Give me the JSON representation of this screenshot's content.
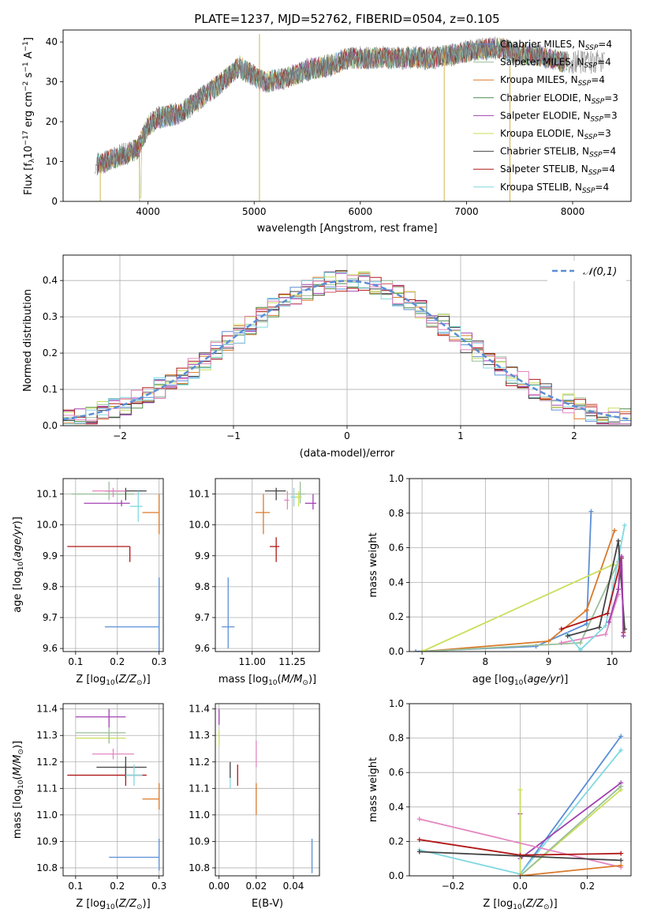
{
  "figure_title": "PLATE=1237, MJD=52762, FIBERID=0504, z=0.105",
  "colors": [
    "#5b8ed6",
    "#9abf9a",
    "#d97a2b",
    "#4d8a4d",
    "#a040b0",
    "#c9de5a",
    "#444444",
    "#b01818",
    "#80d8e0",
    "#e386c0"
  ],
  "chart_data": [
    {
      "id": "spectrum",
      "type": "line",
      "title": "PLATE=1237, MJD=52762, FIBERID=0504, z=0.105",
      "xlabel": "wavelength [Angstrom, rest frame]",
      "ylabel": "Flux [f_λ 10^-17 erg cm^-2 s^-1 A^-1]",
      "xlim": [
        3200,
        8550
      ],
      "ylim": [
        0,
        43
      ],
      "xticks": [
        "4000",
        "5000",
        "6000",
        "7000",
        "8000"
      ],
      "yticks": [
        "0",
        "10",
        "20",
        "30",
        "40"
      ],
      "continuum_x": [
        3500,
        3700,
        3900,
        4000,
        4100,
        4300,
        4500,
        4700,
        4860,
        4900,
        5100,
        5300,
        5500,
        5700,
        5900,
        6100,
        6300,
        6500,
        6700,
        6900,
        7100,
        7300,
        7500,
        7700,
        7900
      ],
      "continuum_y": [
        9,
        11,
        13,
        19,
        21,
        22,
        26,
        30,
        34,
        33,
        30,
        31,
        33,
        34,
        36,
        36,
        36,
        36,
        36,
        37,
        38,
        38.5,
        37,
        36.5,
        35
      ],
      "series": [
        {
          "name": "Chabrier MILES, N_SSP=4",
          "color": "#5b8ed6"
        },
        {
          "name": "Salpeter MILES, N_SSP=4",
          "color": "#9abf9a"
        },
        {
          "name": "Kroupa MILES, N_SSP=4",
          "color": "#d97a2b"
        },
        {
          "name": "Chabrier ELODIE, N_SSP=3",
          "color": "#4d8a4d"
        },
        {
          "name": "Salpeter ELODIE, N_SSP=3",
          "color": "#a040b0"
        },
        {
          "name": "Kroupa ELODIE, N_SSP=3",
          "color": "#c9de5a"
        },
        {
          "name": "Chabrier STELIB, N_SSP=4",
          "color": "#444444"
        },
        {
          "name": "Salpeter STELIB, N_SSP=4",
          "color": "#b01818"
        },
        {
          "name": "Kroupa STELIB, N_SSP=4",
          "color": "#80d8e0"
        }
      ],
      "legend_position": "right"
    },
    {
      "id": "residuals",
      "type": "line",
      "xlabel": "(data-model)/error",
      "ylabel": "Normed distribution",
      "xlim": [
        -2.5,
        2.5
      ],
      "ylim": [
        0,
        0.47
      ],
      "xticks": [
        "−2",
        "−1",
        "0",
        "1",
        "2"
      ],
      "yticks": [
        "0.0",
        "0.1",
        "0.2",
        "0.3",
        "0.4"
      ],
      "bin_width": 0.1,
      "curve": {
        "name": "𝒩(0,1)",
        "mean": 0,
        "sigma": 1,
        "color": "#5b8ed6",
        "style": "dashed"
      },
      "legend_position": "upper right"
    },
    {
      "id": "age_vs_Z",
      "type": "scatter",
      "xlabel": "Z [log10(Z/Z⊙)]",
      "ylabel": "age [log10(age/yr)]",
      "xlim": [
        0.07,
        0.31
      ],
      "ylim": [
        9.59,
        10.15
      ],
      "xticks": [
        "0.1",
        "0.2",
        "0.3"
      ],
      "yticks": [
        "9.6",
        "9.7",
        "9.8",
        "9.9",
        "10.0",
        "10.1"
      ],
      "points": [
        {
          "x": 0.3,
          "y": 9.67,
          "xerr": [
            0.13,
            0.0
          ],
          "yerr": [
            0.08,
            0.16
          ],
          "color": "#5b8ed6"
        },
        {
          "x": 0.23,
          "y": 9.93,
          "xerr": [
            0.15,
            0.0
          ],
          "yerr": [
            0.05,
            0.0
          ],
          "color": "#b01818"
        },
        {
          "x": 0.3,
          "y": 10.04,
          "xerr": [
            0.04,
            0.0
          ],
          "yerr": [
            0.07,
            0.06
          ],
          "color": "#d97a2b"
        },
        {
          "x": 0.21,
          "y": 10.07,
          "xerr": [
            0.09,
            0.02
          ],
          "yerr": [
            0.01,
            0.01
          ],
          "color": "#a040b0"
        },
        {
          "x": 0.18,
          "y": 10.1,
          "xerr": [
            0.09,
            0.06
          ],
          "yerr": [
            0.02,
            0.04
          ],
          "color": "#9abf9a"
        },
        {
          "x": 0.22,
          "y": 10.11,
          "xerr": [
            0.05,
            0.05
          ],
          "yerr": [
            0.03,
            0.01
          ],
          "color": "#444444"
        },
        {
          "x": 0.19,
          "y": 10.11,
          "xerr": [
            0.05,
            0.03
          ],
          "yerr": [
            0.02,
            0.01
          ],
          "color": "#e386c0"
        },
        {
          "x": 0.25,
          "y": 10.06,
          "xerr": [
            0.02,
            0.01
          ],
          "yerr": [
            0.05,
            0.05
          ],
          "color": "#80d8e0"
        }
      ]
    },
    {
      "id": "age_vs_mass",
      "type": "scatter",
      "xlabel": "mass [log10(M/M⊙)]",
      "ylabel": "",
      "xlim": [
        10.77,
        11.42
      ],
      "ylim": [
        9.59,
        10.15
      ],
      "xticks": [
        "11.00",
        "11.25"
      ],
      "yticks": [
        "9.6",
        "9.7",
        "9.8",
        "9.9",
        "10.0",
        "10.1"
      ],
      "points": [
        {
          "x": 10.85,
          "y": 9.67,
          "xerr": [
            0.04,
            0.04
          ],
          "yerr": [
            0.07,
            0.16
          ],
          "color": "#5b8ed6"
        },
        {
          "x": 11.15,
          "y": 9.93,
          "xerr": [
            0.04,
            0.02
          ],
          "yerr": [
            0.05,
            0.03
          ],
          "color": "#b01818"
        },
        {
          "x": 11.07,
          "y": 10.04,
          "xerr": [
            0.05,
            0.04
          ],
          "yerr": [
            0.07,
            0.06
          ],
          "color": "#d97a2b"
        },
        {
          "x": 11.38,
          "y": 10.07,
          "xerr": [
            0.05,
            0.02
          ],
          "yerr": [
            0.02,
            0.03
          ],
          "color": "#a040b0"
        },
        {
          "x": 11.3,
          "y": 10.1,
          "xerr": [
            0.03,
            0.03
          ],
          "yerr": [
            0.03,
            0.04
          ],
          "color": "#9abf9a"
        },
        {
          "x": 11.15,
          "y": 10.11,
          "xerr": [
            0.07,
            0.06
          ],
          "yerr": [
            0.03,
            0.01
          ],
          "color": "#444444"
        },
        {
          "x": 11.22,
          "y": 10.08,
          "xerr": [
            0.02,
            0.01
          ],
          "yerr": [
            0.03,
            0.03
          ],
          "color": "#e386c0"
        },
        {
          "x": 11.26,
          "y": 10.09,
          "xerr": [
            0.02,
            0.02
          ],
          "yerr": [
            0.03,
            0.03
          ],
          "color": "#80d8e0"
        },
        {
          "x": 11.29,
          "y": 10.09,
          "xerr": [
            0.02,
            0.02
          ],
          "yerr": [
            0.03,
            0.02
          ],
          "color": "#c9de5a"
        }
      ]
    },
    {
      "id": "mass_weight_vs_age",
      "type": "line",
      "xlabel": "age [log10(age/yr)]",
      "ylabel": "mass weight",
      "xlim": [
        6.8,
        10.3
      ],
      "ylim": [
        0,
        1
      ],
      "xticks": [
        "7",
        "8",
        "9",
        "10"
      ],
      "yticks": [
        "0.0",
        "0.2",
        "0.4",
        "0.6",
        "0.8",
        "1.0"
      ],
      "series": [
        {
          "color": "#5b8ed6",
          "x": [
            6.9,
            8.8,
            9.6,
            9.67
          ],
          "y": [
            0.0,
            0.03,
            0.16,
            0.81
          ]
        },
        {
          "color": "#d97a2b",
          "x": [
            7.0,
            9.0,
            9.6,
            10.04
          ],
          "y": [
            0.0,
            0.06,
            0.24,
            0.7
          ]
        },
        {
          "color": "#9abf9a",
          "x": [
            7.0,
            9.5,
            10.1
          ],
          "y": [
            0.0,
            0.05,
            0.52
          ]
        },
        {
          "color": "#c9de5a",
          "x": [
            7.0,
            10.0,
            10.1
          ],
          "y": [
            0.0,
            0.5,
            0.5
          ]
        },
        {
          "color": "#e386c0",
          "x": [
            9.2,
            9.9,
            10.1,
            10.12
          ],
          "y": [
            0.05,
            0.1,
            0.33,
            0.6
          ]
        },
        {
          "color": "#80d8e0",
          "x": [
            9.3,
            9.5,
            9.9,
            10.2
          ],
          "y": [
            0.1,
            0.01,
            0.15,
            0.73
          ]
        },
        {
          "color": "#444444",
          "x": [
            9.3,
            9.8,
            10.1,
            10.2
          ],
          "y": [
            0.09,
            0.14,
            0.64,
            0.13
          ]
        },
        {
          "color": "#b01818",
          "x": [
            9.2,
            9.93,
            10.15,
            10.18
          ],
          "y": [
            0.13,
            0.22,
            0.54,
            0.11
          ]
        },
        {
          "color": "#a040b0",
          "x": [
            9.95,
            10.1,
            10.15,
            10.18
          ],
          "y": [
            0.17,
            0.36,
            0.55,
            0.09
          ]
        }
      ]
    },
    {
      "id": "mass_vs_Z",
      "type": "scatter",
      "xlabel": "Z [log10(Z/Z⊙)]",
      "ylabel": "mass [log10(M/M⊙)]",
      "xlim": [
        0.07,
        0.31
      ],
      "ylim": [
        10.77,
        11.42
      ],
      "xticks": [
        "0.1",
        "0.2",
        "0.3"
      ],
      "yticks": [
        "10.8",
        "10.9",
        "11.0",
        "11.1",
        "11.2",
        "11.3",
        "11.4"
      ],
      "points": [
        {
          "x": 0.3,
          "y": 10.84,
          "xerr": [
            0.12,
            0.0
          ],
          "yerr": [
            0.05,
            0.07
          ],
          "color": "#5b8ed6"
        },
        {
          "x": 0.3,
          "y": 11.06,
          "xerr": [
            0.04,
            0.0
          ],
          "yerr": [
            0.04,
            0.06
          ],
          "color": "#d97a2b"
        },
        {
          "x": 0.22,
          "y": 11.15,
          "xerr": [
            0.14,
            0.05
          ],
          "yerr": [
            0.04,
            0.04
          ],
          "color": "#b01818"
        },
        {
          "x": 0.19,
          "y": 11.23,
          "xerr": [
            0.05,
            0.05
          ],
          "yerr": [
            0.02,
            0.02
          ],
          "color": "#e386c0"
        },
        {
          "x": 0.22,
          "y": 11.18,
          "xerr": [
            0.07,
            0.05
          ],
          "yerr": [
            0.04,
            0.04
          ],
          "color": "#444444"
        },
        {
          "x": 0.18,
          "y": 11.37,
          "xerr": [
            0.08,
            0.04
          ],
          "yerr": [
            0.04,
            0.03
          ],
          "color": "#a040b0"
        },
        {
          "x": 0.18,
          "y": 11.29,
          "xerr": [
            0.08,
            0.04
          ],
          "yerr": [
            0.02,
            0.02
          ],
          "color": "#c9de5a"
        },
        {
          "x": 0.18,
          "y": 11.31,
          "xerr": [
            0.08,
            0.04
          ],
          "yerr": [
            0.04,
            0.02
          ],
          "color": "#9abf9a"
        },
        {
          "x": 0.24,
          "y": 11.15,
          "xerr": [
            0.02,
            0.02
          ],
          "yerr": [
            0.04,
            0.04
          ],
          "color": "#80d8e0"
        }
      ]
    },
    {
      "id": "mass_vs_ebv",
      "type": "scatter",
      "xlabel": "E(B-V)",
      "ylabel": "",
      "xlim": [
        -0.002,
        0.054
      ],
      "ylim": [
        10.77,
        11.42
      ],
      "xticks": [
        "0.00",
        "0.02",
        "0.04"
      ],
      "yticks": [
        "10.8",
        "10.9",
        "11.0",
        "11.1",
        "11.2",
        "11.3",
        "11.4"
      ],
      "points": [
        {
          "x": 0.05,
          "y": 10.84,
          "yerr": [
            0.06,
            0.07
          ],
          "color": "#5b8ed6"
        },
        {
          "x": 0.02,
          "y": 11.06,
          "yerr": [
            0.06,
            0.06
          ],
          "color": "#d97a2b"
        },
        {
          "x": 0.01,
          "y": 11.15,
          "yerr": [
            0.04,
            0.04
          ],
          "color": "#b01818"
        },
        {
          "x": 0.006,
          "y": 11.15,
          "yerr": [
            0.05,
            0.04
          ],
          "color": "#80d8e0"
        },
        {
          "x": 0.006,
          "y": 11.18,
          "yerr": [
            0.04,
            0.02
          ],
          "color": "#444444"
        },
        {
          "x": 0.02,
          "y": 11.23,
          "yerr": [
            0.05,
            0.05
          ],
          "color": "#e386c0"
        },
        {
          "x": 0.0,
          "y": 11.37,
          "yerr": [
            0.03,
            0.03
          ],
          "color": "#a040b0"
        },
        {
          "x": 0.0,
          "y": 11.29,
          "yerr": [
            0.03,
            0.03
          ],
          "color": "#c9de5a"
        }
      ]
    },
    {
      "id": "mass_weight_vs_Z",
      "type": "line",
      "xlabel": "Z [log10(Z/Z⊙)]",
      "ylabel": "mass weight",
      "xlim": [
        -0.33,
        0.33
      ],
      "ylim": [
        0,
        1
      ],
      "xticks": [
        "−0.2",
        "0.0",
        "0.2"
      ],
      "yticks": [
        "0.0",
        "0.2",
        "0.4",
        "0.6",
        "0.8",
        "1.0"
      ],
      "series": [
        {
          "color": "#5b8ed6",
          "x": [
            0.0,
            0.3
          ],
          "y": [
            0.01,
            0.81
          ]
        },
        {
          "color": "#80d8e0",
          "x": [
            -0.3,
            0.0,
            0.3
          ],
          "y": [
            0.15,
            0.01,
            0.73
          ]
        },
        {
          "color": "#a040b0",
          "x": [
            0.0,
            0.0,
            0.3
          ],
          "y": [
            0.36,
            0.1,
            0.54
          ]
        },
        {
          "color": "#c9de5a",
          "x": [
            0.0,
            0.0,
            0.3
          ],
          "y": [
            0.5,
            0.0,
            0.5
          ]
        },
        {
          "color": "#9abf9a",
          "x": [
            0.0,
            0.3
          ],
          "y": [
            0.0,
            0.52
          ]
        },
        {
          "color": "#e386c0",
          "x": [
            -0.3,
            0.3
          ],
          "y": [
            0.33,
            0.05
          ]
        },
        {
          "color": "#b01818",
          "x": [
            -0.3,
            0.0,
            0.3
          ],
          "y": [
            0.21,
            0.12,
            0.13
          ]
        },
        {
          "color": "#444444",
          "x": [
            -0.3,
            0.3
          ],
          "y": [
            0.14,
            0.09
          ]
        },
        {
          "color": "#d97a2b",
          "x": [
            0.0,
            0.3
          ],
          "y": [
            0.0,
            0.06
          ]
        }
      ]
    }
  ]
}
